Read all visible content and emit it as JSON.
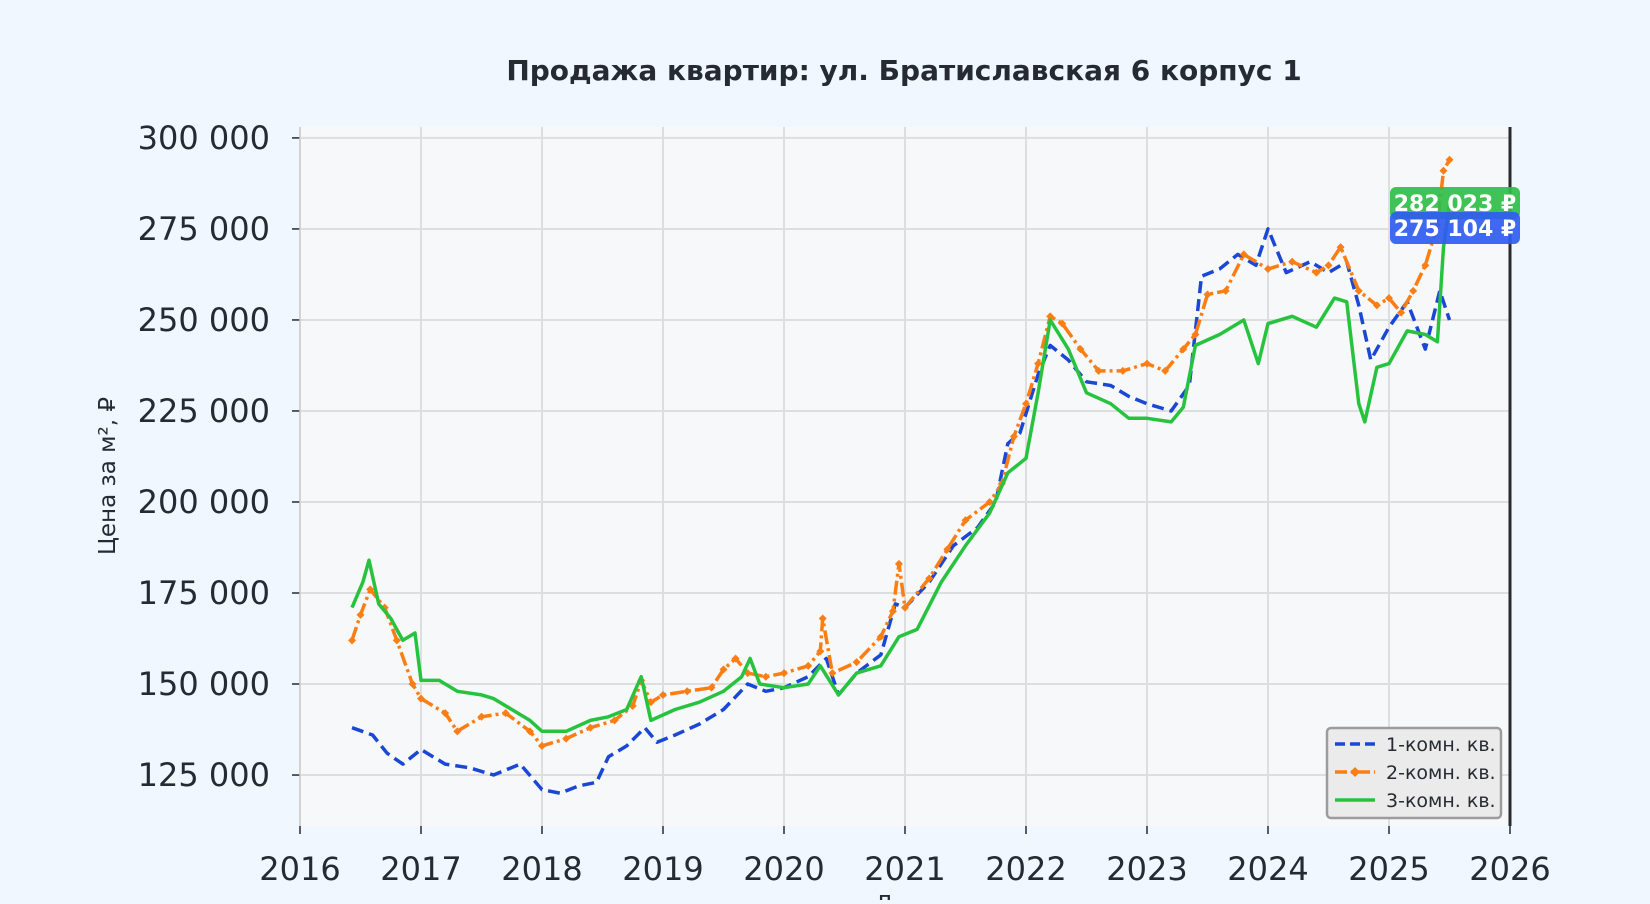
{
  "colors": {
    "page_bg": "#f0f7fe",
    "plot_bg": "#f7f8f9",
    "grid": "#dedede",
    "text": "#262a31",
    "series_1": "#1a47d6",
    "series_2": "#fb7e14",
    "series_3": "#27c33f",
    "badge_green": "#2fbe48",
    "badge_blue": "#2f5cf0"
  },
  "chart_data": {
    "type": "line",
    "title": "Продажа квартир: ул. Братиславская 6 корпус 1",
    "ylabel": "Цена за м², ₽",
    "xlabel": "Д",
    "xlim": [
      2016.0,
      2026.0
    ],
    "ylim": [
      111000,
      303000
    ],
    "x_ticks": [
      "2016",
      "2017",
      "2018",
      "2019",
      "2020",
      "2021",
      "2022",
      "2023",
      "2024",
      "2025",
      "2026"
    ],
    "y_ticks": [
      "125 000",
      "150 000",
      "175 000",
      "200 000",
      "225 000",
      "250 000",
      "275 000",
      "300 000"
    ],
    "grid": true,
    "legend_position": "bottom-right",
    "annotations": [
      {
        "label": "282 023 ₽",
        "value": 282023,
        "series": "3-комн. кв."
      },
      {
        "label": "275 104 ₽",
        "value": 275104,
        "series": "1-комн. кв."
      }
    ],
    "series": [
      {
        "name": "1-комн. кв.",
        "style": "dashed",
        "color": "#1a47d6",
        "points": [
          [
            2016.43,
            138000
          ],
          [
            2016.6,
            136000
          ],
          [
            2016.72,
            131000
          ],
          [
            2016.85,
            128000
          ],
          [
            2017.0,
            132000
          ],
          [
            2017.2,
            128000
          ],
          [
            2017.4,
            127000
          ],
          [
            2017.6,
            125000
          ],
          [
            2017.82,
            128000
          ],
          [
            2018.0,
            121000
          ],
          [
            2018.15,
            120000
          ],
          [
            2018.3,
            122000
          ],
          [
            2018.45,
            123000
          ],
          [
            2018.55,
            130000
          ],
          [
            2018.7,
            133000
          ],
          [
            2018.85,
            138000
          ],
          [
            2018.95,
            134000
          ],
          [
            2019.1,
            136000
          ],
          [
            2019.3,
            139000
          ],
          [
            2019.5,
            143000
          ],
          [
            2019.7,
            150000
          ],
          [
            2019.85,
            148000
          ],
          [
            2020.0,
            149000
          ],
          [
            2020.2,
            152000
          ],
          [
            2020.35,
            157000
          ],
          [
            2020.45,
            147000
          ],
          [
            2020.6,
            153000
          ],
          [
            2020.8,
            158000
          ],
          [
            2020.92,
            172000
          ],
          [
            2021.0,
            171000
          ],
          [
            2021.2,
            178000
          ],
          [
            2021.4,
            188000
          ],
          [
            2021.6,
            193000
          ],
          [
            2021.75,
            200000
          ],
          [
            2021.85,
            216000
          ],
          [
            2021.95,
            219000
          ],
          [
            2022.1,
            235000
          ],
          [
            2022.2,
            243000
          ],
          [
            2022.35,
            239000
          ],
          [
            2022.5,
            233000
          ],
          [
            2022.7,
            232000
          ],
          [
            2022.85,
            229000
          ],
          [
            2023.0,
            227000
          ],
          [
            2023.2,
            225000
          ],
          [
            2023.35,
            232000
          ],
          [
            2023.45,
            262000
          ],
          [
            2023.6,
            264000
          ],
          [
            2023.75,
            268000
          ],
          [
            2023.9,
            265000
          ],
          [
            2024.0,
            275000
          ],
          [
            2024.15,
            263000
          ],
          [
            2024.35,
            266000
          ],
          [
            2024.5,
            263000
          ],
          [
            2024.65,
            266000
          ],
          [
            2024.75,
            254000
          ],
          [
            2024.85,
            239000
          ],
          [
            2025.0,
            248000
          ],
          [
            2025.15,
            255000
          ],
          [
            2025.3,
            242000
          ],
          [
            2025.42,
            258000
          ],
          [
            2025.5,
            250000
          ]
        ]
      },
      {
        "name": "2-комн. кв.",
        "style": "dashdot-markers",
        "color": "#fb7e14",
        "points": [
          [
            2016.43,
            162000
          ],
          [
            2016.5,
            169000
          ],
          [
            2016.58,
            176000
          ],
          [
            2016.7,
            171000
          ],
          [
            2016.8,
            162000
          ],
          [
            2016.93,
            150000
          ],
          [
            2017.0,
            146000
          ],
          [
            2017.2,
            142000
          ],
          [
            2017.3,
            137000
          ],
          [
            2017.5,
            141000
          ],
          [
            2017.7,
            142000
          ],
          [
            2017.9,
            137000
          ],
          [
            2018.0,
            133000
          ],
          [
            2018.2,
            135000
          ],
          [
            2018.4,
            138000
          ],
          [
            2018.6,
            140000
          ],
          [
            2018.75,
            144000
          ],
          [
            2018.82,
            151000
          ],
          [
            2018.9,
            145000
          ],
          [
            2019.0,
            147000
          ],
          [
            2019.2,
            148000
          ],
          [
            2019.4,
            149000
          ],
          [
            2019.5,
            154000
          ],
          [
            2019.6,
            157000
          ],
          [
            2019.7,
            153000
          ],
          [
            2019.85,
            152000
          ],
          [
            2020.0,
            153000
          ],
          [
            2020.2,
            155000
          ],
          [
            2020.3,
            159000
          ],
          [
            2020.32,
            168000
          ],
          [
            2020.4,
            153000
          ],
          [
            2020.6,
            156000
          ],
          [
            2020.8,
            163000
          ],
          [
            2020.9,
            170000
          ],
          [
            2020.95,
            183000
          ],
          [
            2021.0,
            171000
          ],
          [
            2021.2,
            179000
          ],
          [
            2021.35,
            187000
          ],
          [
            2021.5,
            195000
          ],
          [
            2021.7,
            200000
          ],
          [
            2021.8,
            205000
          ],
          [
            2021.9,
            218000
          ],
          [
            2022.0,
            227000
          ],
          [
            2022.1,
            238000
          ],
          [
            2022.2,
            251000
          ],
          [
            2022.3,
            249000
          ],
          [
            2022.45,
            242000
          ],
          [
            2022.6,
            236000
          ],
          [
            2022.8,
            236000
          ],
          [
            2023.0,
            238000
          ],
          [
            2023.15,
            236000
          ],
          [
            2023.3,
            242000
          ],
          [
            2023.4,
            246000
          ],
          [
            2023.5,
            257000
          ],
          [
            2023.65,
            258000
          ],
          [
            2023.8,
            268000
          ],
          [
            2024.0,
            264000
          ],
          [
            2024.2,
            266000
          ],
          [
            2024.4,
            263000
          ],
          [
            2024.5,
            265000
          ],
          [
            2024.6,
            270000
          ],
          [
            2024.75,
            258000
          ],
          [
            2024.9,
            254000
          ],
          [
            2025.0,
            256000
          ],
          [
            2025.1,
            252000
          ],
          [
            2025.2,
            258000
          ],
          [
            2025.3,
            265000
          ],
          [
            2025.4,
            276000
          ],
          [
            2025.45,
            291000
          ],
          [
            2025.5,
            294000
          ]
        ]
      },
      {
        "name": "3-комн. кв.",
        "style": "solid",
        "color": "#27c33f",
        "points": [
          [
            2016.43,
            171000
          ],
          [
            2016.52,
            178000
          ],
          [
            2016.57,
            184000
          ],
          [
            2016.65,
            172000
          ],
          [
            2016.75,
            168000
          ],
          [
            2016.85,
            162000
          ],
          [
            2016.95,
            164000
          ],
          [
            2017.0,
            151000
          ],
          [
            2017.15,
            151000
          ],
          [
            2017.3,
            148000
          ],
          [
            2017.5,
            147000
          ],
          [
            2017.6,
            146000
          ],
          [
            2017.75,
            143000
          ],
          [
            2017.9,
            140000
          ],
          [
            2018.0,
            137000
          ],
          [
            2018.2,
            137000
          ],
          [
            2018.4,
            140000
          ],
          [
            2018.55,
            141000
          ],
          [
            2018.7,
            143000
          ],
          [
            2018.82,
            152000
          ],
          [
            2018.9,
            140000
          ],
          [
            2019.1,
            143000
          ],
          [
            2019.3,
            145000
          ],
          [
            2019.5,
            148000
          ],
          [
            2019.65,
            152000
          ],
          [
            2019.72,
            157000
          ],
          [
            2019.8,
            150000
          ],
          [
            2020.0,
            149000
          ],
          [
            2020.2,
            150000
          ],
          [
            2020.3,
            155000
          ],
          [
            2020.45,
            147000
          ],
          [
            2020.6,
            153000
          ],
          [
            2020.8,
            155000
          ],
          [
            2020.95,
            163000
          ],
          [
            2021.1,
            165000
          ],
          [
            2021.3,
            178000
          ],
          [
            2021.5,
            188000
          ],
          [
            2021.7,
            197000
          ],
          [
            2021.85,
            208000
          ],
          [
            2022.0,
            212000
          ],
          [
            2022.1,
            230000
          ],
          [
            2022.2,
            250000
          ],
          [
            2022.35,
            242000
          ],
          [
            2022.5,
            230000
          ],
          [
            2022.7,
            227000
          ],
          [
            2022.85,
            223000
          ],
          [
            2023.0,
            223000
          ],
          [
            2023.2,
            222000
          ],
          [
            2023.3,
            226000
          ],
          [
            2023.4,
            243000
          ],
          [
            2023.6,
            246000
          ],
          [
            2023.8,
            250000
          ],
          [
            2023.92,
            238000
          ],
          [
            2024.0,
            249000
          ],
          [
            2024.2,
            251000
          ],
          [
            2024.4,
            248000
          ],
          [
            2024.55,
            256000
          ],
          [
            2024.65,
            255000
          ],
          [
            2024.75,
            227000
          ],
          [
            2024.8,
            222000
          ],
          [
            2024.9,
            237000
          ],
          [
            2025.0,
            238000
          ],
          [
            2025.15,
            247000
          ],
          [
            2025.3,
            246000
          ],
          [
            2025.4,
            244000
          ],
          [
            2025.45,
            270000
          ],
          [
            2025.5,
            282000
          ]
        ]
      }
    ]
  }
}
